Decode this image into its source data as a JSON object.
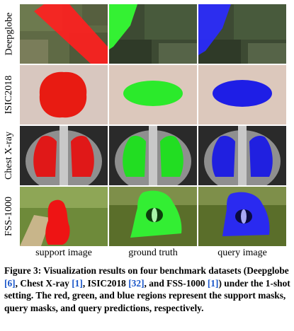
{
  "rows": [
    {
      "label": "Deepglobe"
    },
    {
      "label": "ISIC2018"
    },
    {
      "label": "Chest X-ray"
    },
    {
      "label": "FSS-1000"
    }
  ],
  "columns": [
    {
      "label": "support image",
      "mask_color": "#ff0000"
    },
    {
      "label": "ground truth",
      "mask_color": "#00ff00"
    },
    {
      "label": "query image",
      "mask_color": "#0000ff"
    }
  ],
  "caption": {
    "figure_label": "Figure 3:",
    "t1": " Visualization results on four benchmark datasets (Deepglobe ",
    "r1": "[6]",
    "t2": ", Chest X-ray ",
    "r2": "[1]",
    "t3": ", ISIC2018 ",
    "r3": "[32]",
    "t4": ", and FSS-1000 ",
    "r4": "[1]",
    "t5": ") under the 1-shot setting. The red, green, and blue regions represent the support masks, query masks, and query predictions, respectively."
  }
}
